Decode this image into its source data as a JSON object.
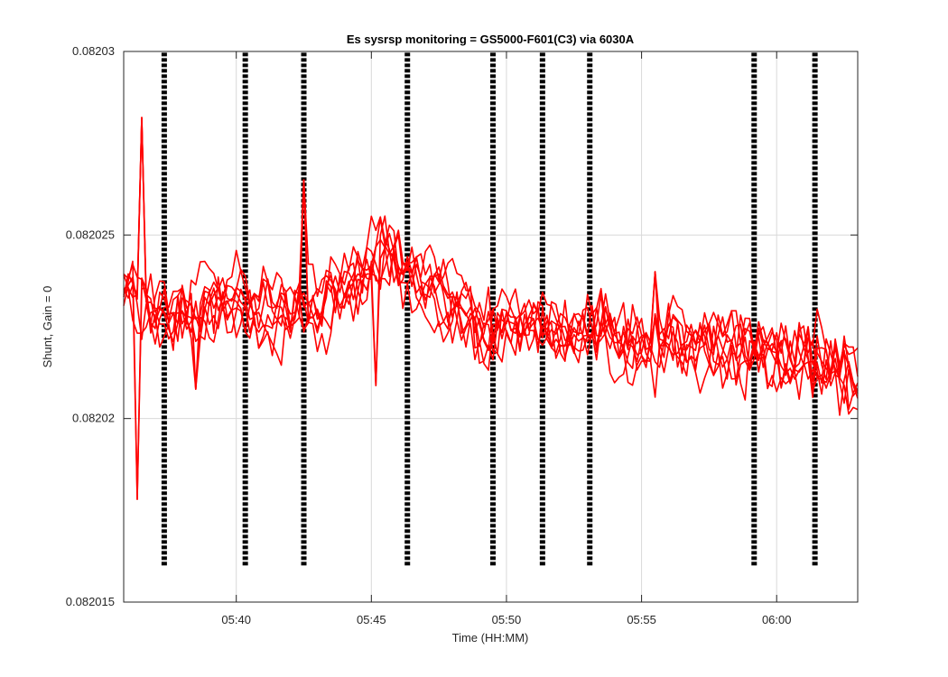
{
  "chart_data": {
    "type": "line",
    "title": "Es sysrsp monitoring = GS5000-F601(C3) via 6030A",
    "xlabel": "Time (HH:MM)",
    "ylabel": "Shunt, Gain = 0",
    "xlim": [
      "05:35:50",
      "06:03:00"
    ],
    "ylim": [
      0.082015,
      0.08203
    ],
    "x_ticks": [
      "05:40",
      "05:45",
      "05:50",
      "05:55",
      "06:00"
    ],
    "y_ticks": [
      "0.082015",
      "0.08202",
      "0.082025",
      "0.08203"
    ],
    "grid": true,
    "legend": "none",
    "colors": {
      "series": "#ff0000",
      "markers": "#000000",
      "grid": "#d9d9d9",
      "axes": "#262626"
    },
    "vertical_markers": {
      "style": "dashed",
      "y_range": [
        0.082016,
        0.08203
      ],
      "x": [
        "05:37:20",
        "05:40:20",
        "05:42:30",
        "05:46:20",
        "05:49:30",
        "05:51:20",
        "05:53:05",
        "05:59:10",
        "06:01:25"
      ]
    },
    "series_profile": {
      "x": [
        "05:35:50",
        "05:36:30",
        "05:37:00",
        "05:38:00",
        "05:39:00",
        "05:40:00",
        "05:41:00",
        "05:42:00",
        "05:43:00",
        "05:44:00",
        "05:44:30",
        "05:45:00",
        "05:45:30",
        "05:46:00",
        "05:46:30",
        "05:47:00",
        "05:48:00",
        "05:49:00",
        "05:49:30",
        "05:50:00",
        "05:51:00",
        "05:52:00",
        "05:53:00",
        "05:53:30",
        "05:54:00",
        "05:55:00",
        "05:56:00",
        "05:57:00",
        "05:58:00",
        "05:59:00",
        "06:00:00",
        "06:01:00",
        "06:02:00",
        "06:02:30",
        "06:03:00"
      ],
      "y": [
        0.0820233,
        0.082023,
        0.0820228,
        0.0820229,
        0.0820231,
        0.0820232,
        0.082023,
        0.0820229,
        0.082023,
        0.0820235,
        0.0820238,
        0.0820243,
        0.0820247,
        0.0820245,
        0.0820238,
        0.0820236,
        0.082023,
        0.0820223,
        0.0820225,
        0.0820227,
        0.0820226,
        0.0820223,
        0.0820224,
        0.0820225,
        0.082022,
        0.082022,
        0.0820221,
        0.082022,
        0.0820219,
        0.0820218,
        0.0820217,
        0.0820216,
        0.0820215,
        0.0820212,
        0.0820207
      ]
    },
    "series_count": 8,
    "spikes": [
      {
        "x": "05:36:30",
        "y": 0.0820282
      },
      {
        "x": "05:36:20",
        "y": 0.0820178
      },
      {
        "x": "05:38:30",
        "y": 0.0820208
      },
      {
        "x": "05:42:30",
        "y": 0.0820265
      },
      {
        "x": "05:45:10",
        "y": 0.0820209
      },
      {
        "x": "05:55:30",
        "y": 0.082024
      },
      {
        "x": "05:59:15",
        "y": 0.0820235
      },
      {
        "x": "06:01:10",
        "y": 0.0820225
      }
    ]
  }
}
